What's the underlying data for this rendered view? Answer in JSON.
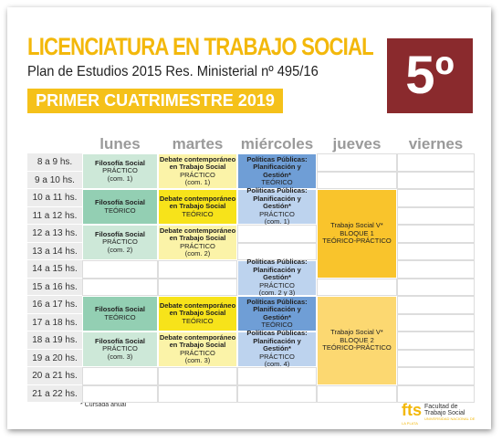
{
  "header": {
    "title": "LICENCIATURA EN TRABAJO SOCIAL",
    "subtitle": "Plan de Estudios 2015 Res. Ministerial nº 495/16",
    "term": "PRIMER CUATRIMESTRE 2019",
    "year_badge": "5º"
  },
  "times": [
    "8 a 9 hs.",
    "9 a 10 hs.",
    "10 a 11 hs.",
    "11 a 12 hs.",
    "12 a 13 hs.",
    "13 a 14 hs.",
    "14 a 15 hs.",
    "15 a 16 hs.",
    "16 a 17 hs.",
    "17 a 18 hs.",
    "18 a 19 hs.",
    "19 a 20 hs.",
    "20 a 21 hs.",
    "21 a 22 hs."
  ],
  "days": [
    {
      "name": "lunes",
      "slots": [
        {
          "hours": 2,
          "color": "#cde8d8",
          "subject": [
            "Filosofía Social"
          ],
          "detail": [
            "PRÁCTICO",
            "(com. 1)"
          ]
        },
        {
          "hours": 2,
          "color": "#93cfb3",
          "subject": [
            "Filosofía Social"
          ],
          "detail": [
            "TEÓRICO"
          ]
        },
        {
          "hours": 2,
          "color": "#cde8d8",
          "subject": [
            "Filosofía Social"
          ],
          "detail": [
            "PRÁCTICO",
            "(com. 2)"
          ]
        },
        null,
        null,
        {
          "hours": 2,
          "color": "#93cfb3",
          "subject": [
            "Filosofía Social"
          ],
          "detail": [
            "TEÓRICO"
          ]
        },
        {
          "hours": 2,
          "color": "#cde8d8",
          "subject": [
            "Filosofía Social"
          ],
          "detail": [
            "PRÁCTICO",
            "(com. 3)"
          ]
        },
        null,
        null
      ]
    },
    {
      "name": "martes",
      "slots": [
        {
          "hours": 2,
          "color": "#fbf3a8",
          "subject": [
            "Debate contemporáneo",
            "en Trabajo Social"
          ],
          "detail": [
            "PRÁCTICO",
            "(com. 1)"
          ]
        },
        {
          "hours": 2,
          "color": "#f7e31a",
          "subject": [
            "Debate contemporáneo",
            "en Trabajo Social"
          ],
          "detail": [
            "TEÓRICO"
          ]
        },
        {
          "hours": 2,
          "color": "#fbf3a8",
          "subject": [
            "Debate contemporáneo",
            "en Trabajo Social"
          ],
          "detail": [
            "PRÁCTICO",
            "(com. 2)"
          ]
        },
        null,
        null,
        {
          "hours": 2,
          "color": "#f7e31a",
          "subject": [
            "Debate contemporáneo",
            "en Trabajo Social"
          ],
          "detail": [
            "TEÓRICO"
          ]
        },
        {
          "hours": 2,
          "color": "#fbf3a8",
          "subject": [
            "Debate contemporáneo",
            "en Trabajo Social"
          ],
          "detail": [
            "PRÁCTICO",
            "(com. 3)"
          ]
        },
        null,
        null
      ]
    },
    {
      "name": "miércoles",
      "slots": [
        {
          "hours": 2,
          "color": "#6f9ed6",
          "subject": [
            "Políticas Públicas:",
            "Planificación y Gestión*"
          ],
          "detail": [
            "TEÓRICO"
          ]
        },
        {
          "hours": 2,
          "color": "#bdd3ee",
          "subject": [
            "Políticas Públicas:",
            "Planificación y Gestión*"
          ],
          "detail": [
            "PRÁCTICO",
            "(com. 1)"
          ]
        },
        null,
        null,
        {
          "hours": 2,
          "color": "#bdd3ee",
          "subject": [
            "Políticas Públicas:",
            "Planificación y Gestión*"
          ],
          "detail": [
            "PRÁCTICO",
            "(com. 2 y 3)"
          ]
        },
        {
          "hours": 2,
          "color": "#6f9ed6",
          "subject": [
            "Políticas Públicas:",
            "Planificación y Gestión*"
          ],
          "detail": [
            "TEÓRICO"
          ]
        },
        {
          "hours": 2,
          "color": "#bdd3ee",
          "subject": [
            "Políticas Públicas:",
            "Planificación y Gestión*"
          ],
          "detail": [
            "PRÁCTICO",
            "(com. 4)"
          ]
        },
        null,
        null
      ]
    },
    {
      "name": "jueves",
      "slots": [
        null,
        null,
        {
          "hours": 5,
          "color": "#f9c42c",
          "subject": [],
          "detail": [
            "Trabajo Social V*",
            "BLOQUE 1",
            "TEÓRICO-PRÁCTICO"
          ]
        },
        null,
        {
          "hours": 5,
          "color": "#fcd871",
          "subject": [],
          "detail": [
            "Trabajo Social V*",
            "BLOQUE 2",
            "TEÓRICO-PRÁCTICO"
          ]
        },
        null
      ]
    },
    {
      "name": "viernes",
      "slots": [
        null,
        null,
        null,
        null,
        null,
        null,
        null,
        null,
        null,
        null,
        null,
        null,
        null,
        null
      ]
    }
  ],
  "footnote": "* Cursada anual",
  "logo": {
    "mark": "fts",
    "name": "Facultad de Trabajo Social",
    "university": "UNIVERSIDAD NACIONAL DE LA PLATA"
  }
}
